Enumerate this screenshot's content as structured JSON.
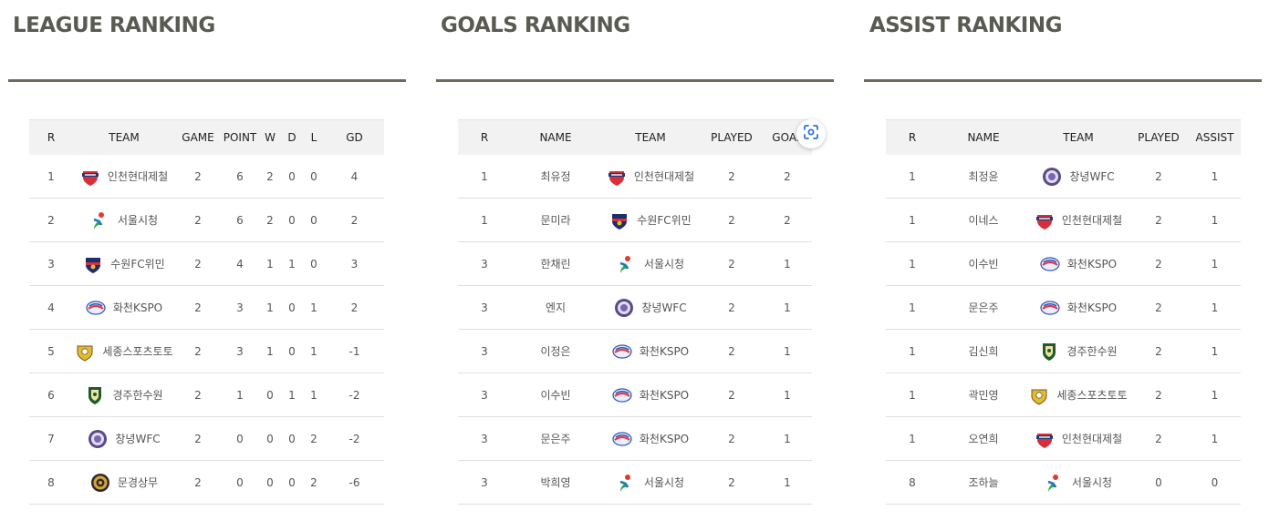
{
  "league": {
    "title": "LEAGUE RANKING",
    "headers": [
      "R",
      "TEAM",
      "GAME",
      "POINT",
      "W",
      "D",
      "L",
      "GD"
    ],
    "rows": [
      {
        "rank": "1",
        "team": "인천현대제철",
        "logo": "incheon-hyundai-steel-logo",
        "game": "2",
        "point": "6",
        "w": "2",
        "d": "0",
        "l": "0",
        "gd": "4"
      },
      {
        "rank": "2",
        "team": "서울시청",
        "logo": "seoul-city-logo",
        "game": "2",
        "point": "6",
        "w": "2",
        "d": "0",
        "l": "0",
        "gd": "2"
      },
      {
        "rank": "3",
        "team": "수원FC위민",
        "logo": "suwon-fc-women-logo",
        "game": "2",
        "point": "4",
        "w": "1",
        "d": "1",
        "l": "0",
        "gd": "3"
      },
      {
        "rank": "4",
        "team": "화천KSPO",
        "logo": "hwacheon-kspo-logo",
        "game": "2",
        "point": "3",
        "w": "1",
        "d": "0",
        "l": "1",
        "gd": "2"
      },
      {
        "rank": "5",
        "team": "세종스포츠토토",
        "logo": "sejong-sportstoto-logo",
        "game": "2",
        "point": "3",
        "w": "1",
        "d": "0",
        "l": "1",
        "gd": "-1"
      },
      {
        "rank": "6",
        "team": "경주한수원",
        "logo": "gyeongju-khnp-logo",
        "game": "2",
        "point": "1",
        "w": "0",
        "d": "1",
        "l": "1",
        "gd": "-2"
      },
      {
        "rank": "7",
        "team": "창녕WFC",
        "logo": "changnyeong-wfc-logo",
        "game": "2",
        "point": "0",
        "w": "0",
        "d": "0",
        "l": "2",
        "gd": "-2"
      },
      {
        "rank": "8",
        "team": "문경상무",
        "logo": "mungyeong-sangmu-logo",
        "game": "2",
        "point": "0",
        "w": "0",
        "d": "0",
        "l": "2",
        "gd": "-6"
      }
    ]
  },
  "goals": {
    "title": "GOALS RANKING",
    "headers": [
      "R",
      "NAME",
      "TEAM",
      "PLAYED",
      "GOAL"
    ],
    "rows": [
      {
        "rank": "1",
        "name": "최유정",
        "team": "인천현대제철",
        "logo": "incheon-hyundai-steel-logo",
        "played": "2",
        "value": "2"
      },
      {
        "rank": "1",
        "name": "문미라",
        "team": "수원FC위민",
        "logo": "suwon-fc-women-logo",
        "played": "2",
        "value": "2"
      },
      {
        "rank": "3",
        "name": "한채린",
        "team": "서울시청",
        "logo": "seoul-city-logo",
        "played": "2",
        "value": "1"
      },
      {
        "rank": "3",
        "name": "엔지",
        "team": "창녕WFC",
        "logo": "changnyeong-wfc-logo",
        "played": "2",
        "value": "1"
      },
      {
        "rank": "3",
        "name": "이정은",
        "team": "화천KSPO",
        "logo": "hwacheon-kspo-logo",
        "played": "2",
        "value": "1"
      },
      {
        "rank": "3",
        "name": "이수빈",
        "team": "화천KSPO",
        "logo": "hwacheon-kspo-logo",
        "played": "2",
        "value": "1"
      },
      {
        "rank": "3",
        "name": "문은주",
        "team": "화천KSPO",
        "logo": "hwacheon-kspo-logo",
        "played": "2",
        "value": "1"
      },
      {
        "rank": "3",
        "name": "박희영",
        "team": "서울시청",
        "logo": "seoul-city-logo",
        "played": "2",
        "value": "1"
      }
    ]
  },
  "assist": {
    "title": "ASSIST RANKING",
    "headers": [
      "R",
      "NAME",
      "TEAM",
      "PLAYED",
      "ASSIST"
    ],
    "rows": [
      {
        "rank": "1",
        "name": "최정윤",
        "team": "창녕WFC",
        "logo": "changnyeong-wfc-logo",
        "played": "2",
        "value": "1"
      },
      {
        "rank": "1",
        "name": "이네스",
        "team": "인천현대제철",
        "logo": "incheon-hyundai-steel-logo",
        "played": "2",
        "value": "1"
      },
      {
        "rank": "1",
        "name": "이수빈",
        "team": "화천KSPO",
        "logo": "hwacheon-kspo-logo",
        "played": "2",
        "value": "1"
      },
      {
        "rank": "1",
        "name": "문은주",
        "team": "화천KSPO",
        "logo": "hwacheon-kspo-logo",
        "played": "2",
        "value": "1"
      },
      {
        "rank": "1",
        "name": "김신희",
        "team": "경주한수원",
        "logo": "gyeongju-khnp-logo",
        "played": "2",
        "value": "1"
      },
      {
        "rank": "1",
        "name": "곽민영",
        "team": "세종스포츠토토",
        "logo": "sejong-sportstoto-logo",
        "played": "2",
        "value": "1"
      },
      {
        "rank": "1",
        "name": "오연희",
        "team": "인천현대제철",
        "logo": "incheon-hyundai-steel-logo",
        "played": "2",
        "value": "1"
      },
      {
        "rank": "8",
        "name": "조하늘",
        "team": "서울시청",
        "logo": "seoul-city-logo",
        "played": "0",
        "value": "0"
      }
    ]
  },
  "overlay": {
    "icon": "screen-capture-icon"
  },
  "colors": {
    "title": "#5a5a52",
    "rule": "#6e6a5e",
    "header_bg": "#f2f2f2",
    "row_border": "#e0e0e0"
  }
}
